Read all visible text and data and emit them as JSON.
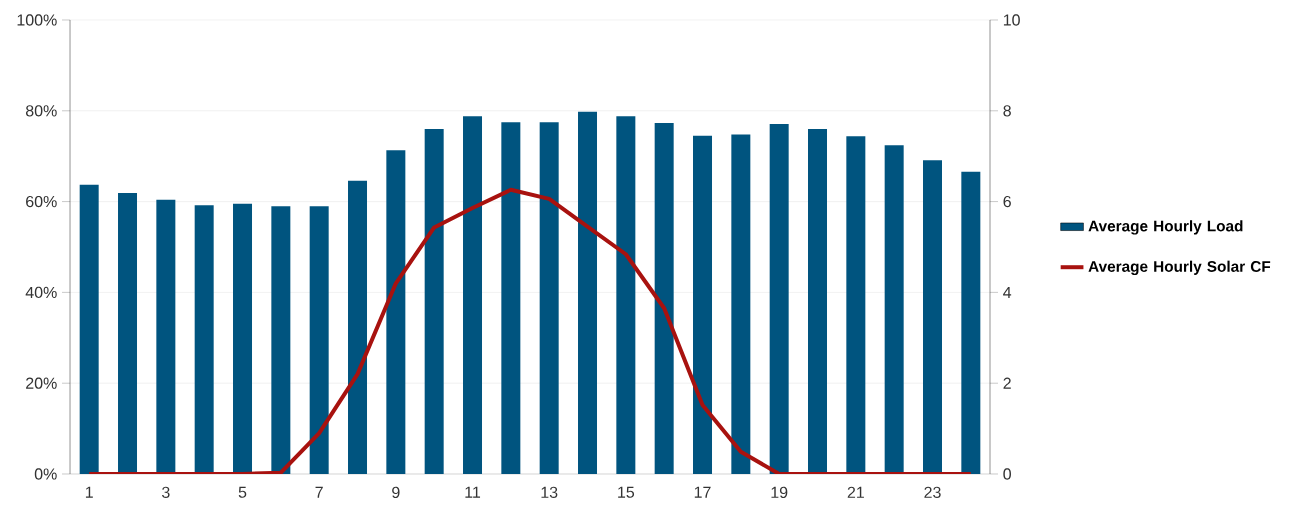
{
  "chart_data": {
    "type": "bar",
    "x": [
      1,
      2,
      3,
      4,
      5,
      6,
      7,
      8,
      9,
      10,
      11,
      12,
      13,
      14,
      15,
      16,
      17,
      18,
      19,
      20,
      21,
      22,
      23,
      24
    ],
    "xlim": [
      0.5,
      24.5
    ],
    "xticks": [
      1,
      3,
      5,
      7,
      9,
      11,
      13,
      15,
      17,
      19,
      21,
      23
    ],
    "ylim": [
      0,
      100
    ],
    "yticks": [
      {
        "value": 0,
        "label": "0%"
      },
      {
        "value": 20,
        "label": "20%"
      },
      {
        "value": 40,
        "label": "40%"
      },
      {
        "value": 60,
        "label": "60%"
      },
      {
        "value": 80,
        "label": "80%"
      },
      {
        "value": 100,
        "label": "100%"
      }
    ],
    "y2lim": [
      0,
      10
    ],
    "y2ticks": [
      0,
      2,
      4,
      6,
      8,
      10
    ],
    "grid": "y",
    "legend": "right",
    "series": [
      {
        "name": "Average Hourly Load",
        "color": "#00547f",
        "values": [
          63.7,
          61.9,
          60.4,
          59.2,
          59.5,
          59.0,
          59.0,
          64.6,
          71.3,
          76.0,
          78.8,
          77.5,
          77.5,
          79.8,
          78.8,
          77.3,
          74.5,
          74.8,
          77.1,
          76.0,
          74.4,
          72.4,
          69.1,
          66.6
        ]
      },
      {
        "name": "Average Hourly Solar CF",
        "type": "line",
        "axis": "y2",
        "color": "#a8120f",
        "values": [
          0,
          0,
          0,
          0,
          0,
          0.03,
          0.9,
          2.2,
          4.2,
          5.43,
          5.86,
          6.26,
          6.06,
          5.45,
          4.84,
          3.65,
          1.52,
          0.49,
          0,
          0,
          0,
          0,
          0,
          0
        ]
      }
    ]
  }
}
